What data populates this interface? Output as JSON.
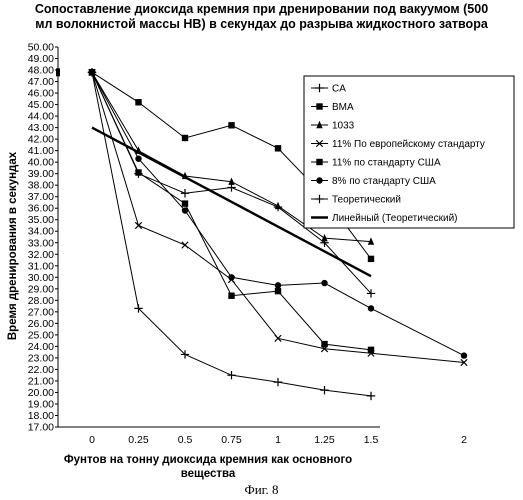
{
  "title_lines": [
    "Сопоставление диоксида кремния при дренировании под вакуумом (500",
    "мл волокнистой массы НВ) в секундах до разрыва жидкостного затвора"
  ],
  "figure_caption": "Фиг. 8",
  "chart_data": {
    "type": "line",
    "ylabel": "Время дренирования в секундах",
    "xlabel_lines": [
      "Фунтов на тонну диоксида кремния как основного",
      "вещества"
    ],
    "ylim": [
      17.0,
      50.0
    ],
    "y_ticks": [
      "17.00",
      "18.00",
      "19.00",
      "20.00",
      "21.00",
      "22.00",
      "23.00",
      "24.00",
      "25.00",
      "26.00",
      "27.00",
      "28.00",
      "29.00",
      "30.00",
      "31.00",
      "32.00",
      "33.00",
      "34.00",
      "35.00",
      "36.00",
      "37.00",
      "38.00",
      "39.00",
      "40.00",
      "41.00",
      "42.00",
      "43.00",
      "44.00",
      "45.00",
      "46.00",
      "47.00",
      "48.00",
      "49.00",
      "50.00"
    ],
    "xlim": [
      0,
      2.05
    ],
    "x_ticks": [
      {
        "v": 0,
        "label": "0"
      },
      {
        "v": 0.25,
        "label": "0.25"
      },
      {
        "v": 0.5,
        "label": "0.5"
      },
      {
        "v": 0.75,
        "label": "0.75"
      },
      {
        "v": 1,
        "label": "1"
      },
      {
        "v": 1.25,
        "label": "1.25"
      },
      {
        "v": 1.5,
        "label": "1.5"
      },
      {
        "v": 2,
        "label": "2"
      }
    ],
    "legend_position": "top-right",
    "series": [
      {
        "name": "CA",
        "marker": "plus",
        "x": [
          0,
          0.25,
          0.5,
          0.75,
          1.0,
          1.25,
          1.5
        ],
        "y": [
          47.8,
          27.3,
          23.3,
          21.5,
          20.9,
          20.2,
          19.7
        ]
      },
      {
        "name": "BMA",
        "marker": "square",
        "x": [
          0,
          0.25,
          0.5,
          0.75,
          1.0,
          1.25,
          1.5
        ],
        "y": [
          47.8,
          45.2,
          42.1,
          43.2,
          41.2,
          37.0,
          31.6
        ]
      },
      {
        "name": "1033",
        "marker": "triangle",
        "x": [
          0,
          0.25,
          0.5,
          0.75,
          1.0,
          1.25,
          1.5
        ],
        "y": [
          47.8,
          41.0,
          38.8,
          38.3,
          36.2,
          33.4,
          33.1
        ]
      },
      {
        "name": "11% По европейскому стандарту",
        "marker": "cross",
        "x": [
          0,
          0.25,
          0.5,
          0.75,
          1.0,
          1.25,
          1.5,
          2.0
        ],
        "y": [
          47.8,
          34.5,
          32.8,
          29.8,
          24.7,
          23.8,
          23.4,
          22.6
        ]
      },
      {
        "name": "11% по стандарту США",
        "marker": "square",
        "x": [
          0,
          0.25,
          0.5,
          0.75,
          1.0,
          1.25,
          1.5
        ],
        "y": [
          47.8,
          39.1,
          36.4,
          28.4,
          28.8,
          24.2,
          23.7
        ]
      },
      {
        "name": "8% по стандарту США",
        "marker": "circle",
        "x": [
          0,
          0.25,
          0.5,
          0.75,
          1.0,
          1.25,
          1.5,
          2.0
        ],
        "y": [
          47.8,
          40.3,
          35.8,
          30.0,
          29.3,
          29.5,
          27.3,
          23.2
        ]
      },
      {
        "name": "Теоретический",
        "marker": "plus",
        "x": [
          0,
          0.25,
          0.5,
          0.75,
          1.0,
          1.25,
          1.5
        ],
        "y": [
          47.8,
          39.0,
          37.3,
          37.8,
          36.1,
          33.0,
          28.6
        ]
      },
      {
        "name": "Линейный (Теоретический)",
        "marker": "none",
        "bold": true,
        "x": [
          0,
          1.5
        ],
        "y": [
          43.0,
          30.1
        ]
      }
    ]
  }
}
